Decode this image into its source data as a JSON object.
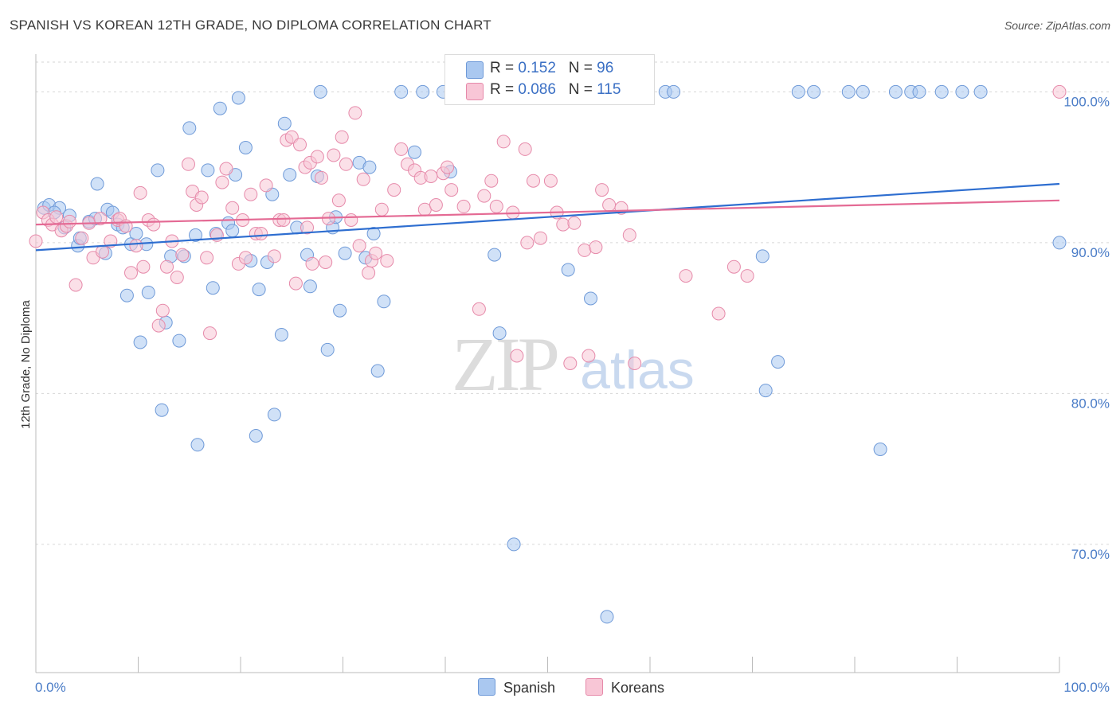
{
  "header": {
    "title": "SPANISH VS KOREAN 12TH GRADE, NO DIPLOMA CORRELATION CHART",
    "source": "Source: ZipAtlas.com"
  },
  "watermark": {
    "zip": "ZIP",
    "atlas": "atlas"
  },
  "legend_top": {
    "rows": [
      {
        "r_label": "R = ",
        "r_value": "0.152",
        "n_label": "N = ",
        "n_value": "96",
        "color": "#aac8f0",
        "border": "#6f9ad8"
      },
      {
        "r_label": "R = ",
        "r_value": "0.086",
        "n_label": "N = ",
        "n_value": "115",
        "color": "#f8c6d6",
        "border": "#e68aaa"
      }
    ]
  },
  "legend_bottom": [
    {
      "label": "Spanish",
      "color": "#aac8f0",
      "border": "#6f9ad8"
    },
    {
      "label": "Koreans",
      "color": "#f8c6d6",
      "border": "#e68aaa"
    }
  ],
  "chart_data": {
    "type": "scatter",
    "title": "SPANISH VS KOREAN 12TH GRADE, NO DIPLOMA CORRELATION CHART",
    "xlabel": "",
    "ylabel": "12th Grade, No Diploma",
    "xlim": [
      0,
      100
    ],
    "ylim": [
      61.5,
      102.5
    ],
    "x_tick_labels": [
      "0.0%",
      "100.0%"
    ],
    "y_ticks": [
      70,
      80,
      90,
      100
    ],
    "y_tick_labels": [
      "70.0%",
      "80.0%",
      "90.0%",
      "100.0%"
    ],
    "grid": "horizontal dashed",
    "legend_position": "top-center",
    "series": [
      {
        "name": "Spanish",
        "color": "#6f9ad8",
        "fill": "#aac8f0",
        "trend": {
          "x0": 0,
          "y0": 89.5,
          "x1": 100,
          "y1": 93.9,
          "color": "#2e6ed0"
        },
        "points": [
          [
            0.8,
            92.3
          ],
          [
            1.3,
            92.5
          ],
          [
            2.3,
            92.3
          ],
          [
            1.8,
            92.0
          ],
          [
            2.8,
            91.0
          ],
          [
            3.3,
            91.8
          ],
          [
            4.1,
            89.8
          ],
          [
            4.3,
            90.3
          ],
          [
            5.2,
            91.4
          ],
          [
            5.8,
            91.6
          ],
          [
            6.0,
            93.9
          ],
          [
            6.8,
            89.3
          ],
          [
            7.0,
            92.2
          ],
          [
            7.5,
            92.0
          ],
          [
            8.0,
            91.2
          ],
          [
            8.5,
            91.0
          ],
          [
            8.9,
            86.5
          ],
          [
            9.3,
            89.9
          ],
          [
            9.8,
            90.6
          ],
          [
            10.2,
            83.4
          ],
          [
            10.8,
            89.9
          ],
          [
            11.0,
            86.7
          ],
          [
            11.9,
            94.8
          ],
          [
            12.3,
            78.9
          ],
          [
            12.7,
            84.7
          ],
          [
            13.2,
            89.1
          ],
          [
            14.0,
            83.5
          ],
          [
            14.5,
            89.1
          ],
          [
            15.0,
            97.6
          ],
          [
            15.6,
            90.5
          ],
          [
            15.8,
            76.6
          ],
          [
            16.8,
            94.8
          ],
          [
            17.3,
            87.0
          ],
          [
            17.6,
            90.6
          ],
          [
            18.0,
            98.9
          ],
          [
            18.8,
            91.3
          ],
          [
            19.2,
            90.8
          ],
          [
            19.5,
            94.5
          ],
          [
            19.8,
            99.6
          ],
          [
            20.5,
            96.3
          ],
          [
            21.0,
            88.8
          ],
          [
            21.5,
            77.2
          ],
          [
            21.8,
            86.9
          ],
          [
            22.6,
            88.7
          ],
          [
            23.1,
            93.2
          ],
          [
            23.3,
            78.6
          ],
          [
            24.0,
            83.9
          ],
          [
            24.3,
            97.9
          ],
          [
            24.8,
            94.5
          ],
          [
            25.5,
            91.0
          ],
          [
            26.5,
            89.2
          ],
          [
            26.8,
            87.1
          ],
          [
            27.5,
            94.4
          ],
          [
            27.8,
            100.0
          ],
          [
            28.5,
            82.9
          ],
          [
            29.0,
            91.0
          ],
          [
            29.3,
            91.7
          ],
          [
            29.7,
            85.5
          ],
          [
            30.2,
            89.3
          ],
          [
            31.6,
            95.3
          ],
          [
            32.2,
            89.0
          ],
          [
            32.6,
            95.0
          ],
          [
            33.0,
            90.6
          ],
          [
            33.4,
            81.5
          ],
          [
            34.0,
            86.1
          ],
          [
            35.7,
            100.0
          ],
          [
            37.0,
            96.0
          ],
          [
            37.8,
            100.0
          ],
          [
            39.8,
            100.0
          ],
          [
            40.5,
            94.7
          ],
          [
            44.8,
            89.2
          ],
          [
            45.3,
            84.0
          ],
          [
            47.2,
            100.0
          ],
          [
            48.3,
            100.0
          ],
          [
            46.7,
            70.0
          ],
          [
            52.0,
            88.2
          ],
          [
            54.2,
            86.3
          ],
          [
            55.8,
            65.2
          ],
          [
            56.6,
            100.0
          ],
          [
            61.5,
            100.0
          ],
          [
            62.3,
            100.0
          ],
          [
            71.0,
            89.1
          ],
          [
            71.3,
            80.2
          ],
          [
            72.5,
            82.1
          ],
          [
            74.5,
            100.0
          ],
          [
            76.0,
            100.0
          ],
          [
            79.4,
            100.0
          ],
          [
            80.8,
            100.0
          ],
          [
            82.5,
            76.3
          ],
          [
            84.0,
            100.0
          ],
          [
            85.5,
            100.0
          ],
          [
            86.3,
            100.0
          ],
          [
            88.5,
            100.0
          ],
          [
            90.5,
            100.0
          ],
          [
            92.3,
            100.0
          ],
          [
            100.0,
            90.0
          ]
        ]
      },
      {
        "name": "Koreans",
        "color": "#e68aaa",
        "fill": "#f8c6d6",
        "trend": {
          "x0": 0,
          "y0": 91.2,
          "x1": 100,
          "y1": 92.8,
          "color": "#e46a94"
        },
        "points": [
          [
            0.7,
            92.0
          ],
          [
            1.2,
            91.5
          ],
          [
            1.6,
            91.2
          ],
          [
            2.0,
            91.7
          ],
          [
            2.5,
            90.8
          ],
          [
            3.0,
            91.1
          ],
          [
            3.3,
            91.4
          ],
          [
            3.9,
            87.2
          ],
          [
            4.5,
            90.3
          ],
          [
            5.2,
            91.3
          ],
          [
            5.6,
            89.0
          ],
          [
            6.3,
            91.6
          ],
          [
            6.5,
            89.4
          ],
          [
            7.3,
            90.1
          ],
          [
            8.0,
            91.5
          ],
          [
            8.2,
            91.6
          ],
          [
            8.8,
            91.1
          ],
          [
            9.3,
            88.0
          ],
          [
            9.8,
            89.8
          ],
          [
            10.2,
            93.3
          ],
          [
            10.5,
            88.4
          ],
          [
            11.0,
            91.5
          ],
          [
            11.5,
            91.2
          ],
          [
            12.0,
            84.5
          ],
          [
            12.4,
            85.5
          ],
          [
            12.8,
            88.4
          ],
          [
            13.3,
            90.1
          ],
          [
            13.8,
            87.7
          ],
          [
            14.3,
            89.2
          ],
          [
            14.9,
            95.2
          ],
          [
            15.3,
            93.4
          ],
          [
            15.7,
            92.5
          ],
          [
            16.2,
            93.0
          ],
          [
            16.7,
            89.0
          ],
          [
            17.0,
            84.0
          ],
          [
            17.7,
            90.5
          ],
          [
            18.2,
            94.0
          ],
          [
            18.6,
            94.9
          ],
          [
            19.2,
            92.3
          ],
          [
            19.8,
            88.6
          ],
          [
            20.2,
            91.5
          ],
          [
            20.5,
            89.0
          ],
          [
            21.0,
            93.2
          ],
          [
            21.5,
            90.6
          ],
          [
            22.0,
            90.6
          ],
          [
            22.5,
            93.8
          ],
          [
            23.3,
            89.1
          ],
          [
            23.8,
            91.5
          ],
          [
            24.2,
            91.5
          ],
          [
            24.5,
            96.8
          ],
          [
            25.0,
            97.0
          ],
          [
            25.4,
            87.3
          ],
          [
            25.8,
            96.5
          ],
          [
            26.3,
            95.0
          ],
          [
            26.5,
            91.0
          ],
          [
            26.8,
            95.3
          ],
          [
            27.0,
            88.6
          ],
          [
            27.5,
            95.7
          ],
          [
            27.9,
            94.3
          ],
          [
            28.3,
            88.7
          ],
          [
            28.6,
            91.6
          ],
          [
            29.1,
            95.8
          ],
          [
            29.6,
            92.8
          ],
          [
            29.9,
            97.0
          ],
          [
            30.3,
            95.2
          ],
          [
            30.8,
            91.5
          ],
          [
            31.2,
            98.6
          ],
          [
            31.6,
            89.8
          ],
          [
            32.0,
            94.2
          ],
          [
            32.5,
            88.0
          ],
          [
            32.8,
            88.8
          ],
          [
            33.2,
            89.3
          ],
          [
            33.8,
            92.2
          ],
          [
            34.3,
            88.8
          ],
          [
            35.0,
            93.5
          ],
          [
            35.7,
            96.2
          ],
          [
            36.3,
            95.2
          ],
          [
            37.0,
            94.8
          ],
          [
            37.6,
            94.3
          ],
          [
            38.0,
            92.2
          ],
          [
            38.6,
            94.4
          ],
          [
            39.1,
            92.5
          ],
          [
            39.8,
            94.6
          ],
          [
            40.2,
            95.0
          ],
          [
            40.6,
            93.5
          ],
          [
            41.8,
            92.4
          ],
          [
            43.3,
            85.6
          ],
          [
            43.8,
            93.1
          ],
          [
            44.5,
            94.1
          ],
          [
            45.0,
            92.4
          ],
          [
            45.7,
            96.7
          ],
          [
            46.6,
            92.0
          ],
          [
            47.0,
            82.5
          ],
          [
            47.8,
            96.2
          ],
          [
            48.0,
            90.0
          ],
          [
            48.6,
            94.1
          ],
          [
            49.3,
            90.3
          ],
          [
            50.3,
            94.1
          ],
          [
            50.9,
            92.0
          ],
          [
            51.5,
            91.2
          ],
          [
            52.2,
            82.0
          ],
          [
            52.6,
            91.3
          ],
          [
            53.6,
            89.5
          ],
          [
            54.0,
            82.5
          ],
          [
            54.7,
            89.7
          ],
          [
            55.3,
            93.5
          ],
          [
            56.0,
            92.5
          ],
          [
            57.2,
            92.3
          ],
          [
            58.0,
            90.5
          ],
          [
            58.5,
            82.0
          ],
          [
            63.5,
            87.8
          ],
          [
            66.7,
            85.3
          ],
          [
            68.2,
            88.4
          ],
          [
            69.5,
            87.8
          ],
          [
            100.0,
            100.0
          ],
          [
            0.0,
            90.1
          ]
        ]
      }
    ]
  }
}
